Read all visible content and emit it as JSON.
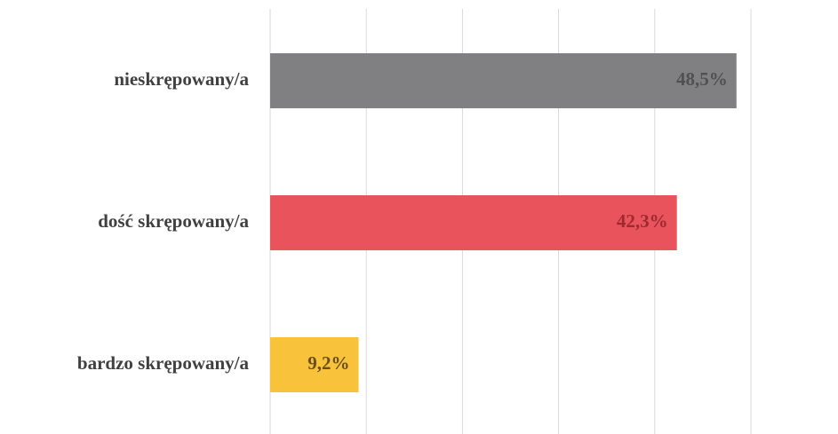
{
  "chart_data": {
    "type": "hbar",
    "categories": [
      "nieskrępowany/a",
      "dość skrępowany/a",
      "bardzo skrępowany/a"
    ],
    "values": [
      48.5,
      42.3,
      9.2
    ],
    "value_labels": [
      "48,5%",
      "42,3%",
      "9,2%"
    ],
    "colors": [
      "#808083",
      "#e8535c",
      "#f8c23a"
    ],
    "value_label_colors": [
      "#505050",
      "#9e2a30",
      "#6b4e1e"
    ],
    "xlim": [
      0,
      50
    ],
    "xticks": [
      0,
      10,
      20,
      30,
      40,
      50
    ],
    "grid": true
  }
}
